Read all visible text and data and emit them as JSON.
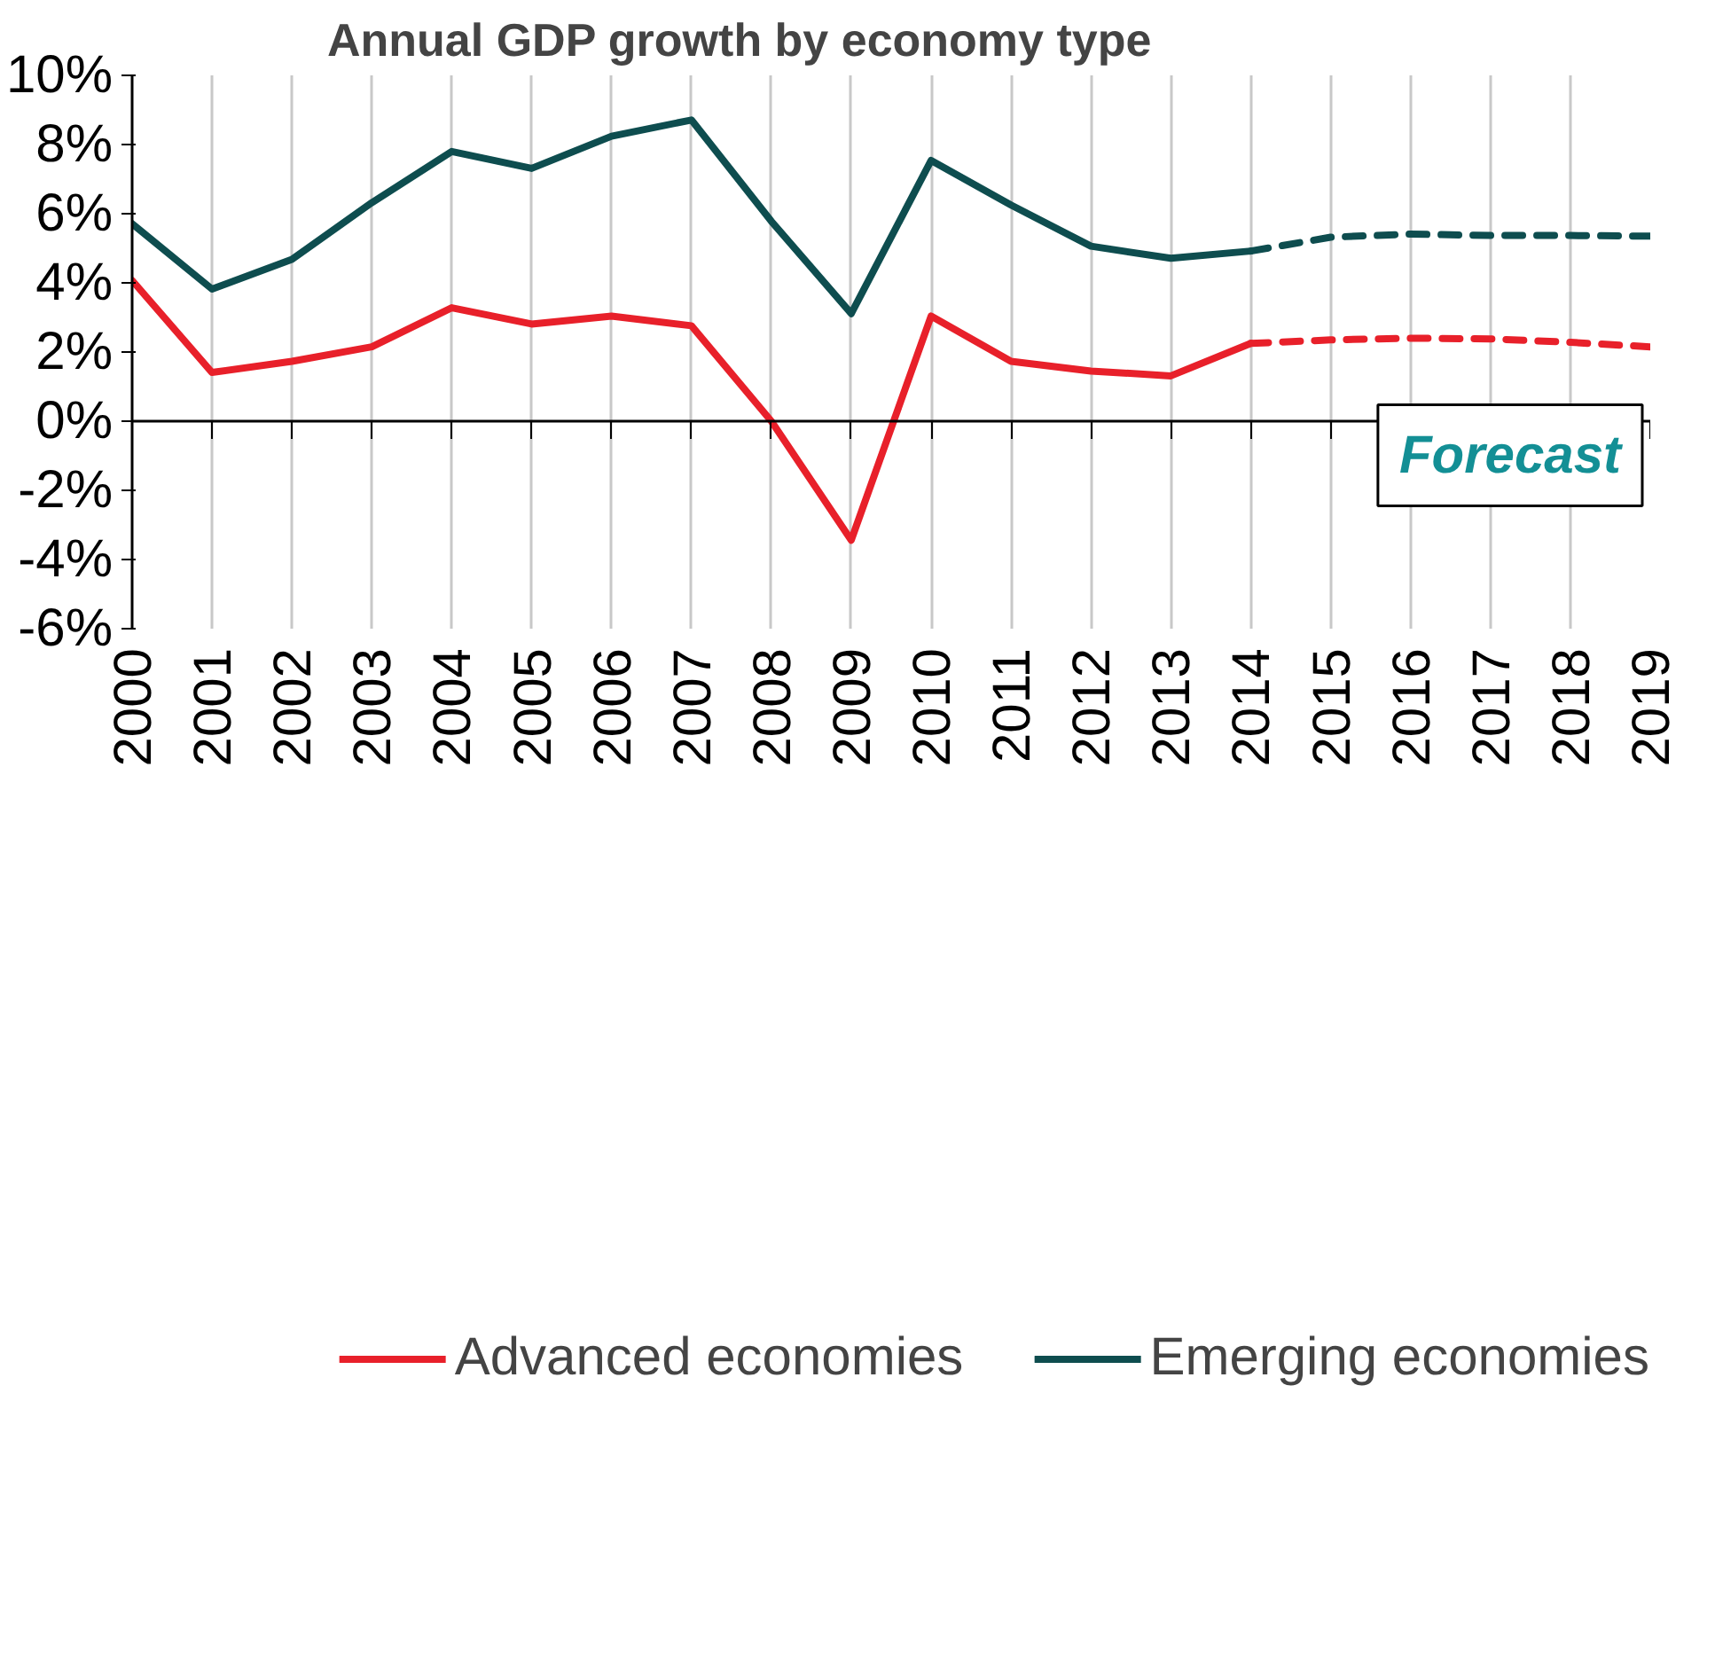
{
  "chart_data": {
    "type": "line",
    "title": "Annual GDP growth by economy type",
    "xlim": [
      2000,
      2019
    ],
    "xticks": [
      2000,
      2001,
      2002,
      2003,
      2004,
      2005,
      2006,
      2007,
      2008,
      2009,
      2010,
      2011,
      2012,
      2013,
      2014,
      2015,
      2016,
      2017,
      2018,
      2019
    ],
    "ylim": [
      -6,
      10
    ],
    "yticks": [
      {
        "value": -6,
        "label": "-6%"
      },
      {
        "value": -4,
        "label": "-4%"
      },
      {
        "value": -2,
        "label": "-2%"
      },
      {
        "value": 0,
        "label": "0%"
      },
      {
        "value": 2,
        "label": "2%"
      },
      {
        "value": 4,
        "label": "4%"
      },
      {
        "value": 6,
        "label": "6%"
      },
      {
        "value": 8,
        "label": "8%"
      },
      {
        "value": 10,
        "label": "10%"
      }
    ],
    "grid": "x",
    "legend": "bottom",
    "marker": "none",
    "annotations": [
      "Forecast"
    ],
    "series": [
      {
        "name": "Advanced economies",
        "color": "#e8202a",
        "line_style": "solid",
        "x": [
          2000,
          2001,
          2002,
          2003,
          2004,
          2005,
          2006,
          2007,
          2008,
          2009,
          2010,
          2011,
          2012,
          2013,
          2014
        ],
        "values": [
          4.07,
          1.41,
          1.73,
          2.15,
          3.28,
          2.81,
          3.04,
          2.76,
          0.0,
          -3.44,
          3.04,
          1.73,
          1.45,
          1.31,
          2.25
        ]
      },
      {
        "color": "#e8202a",
        "line_style": "dashed",
        "x": [
          2014,
          2015,
          2016,
          2017,
          2018,
          2019
        ],
        "values": [
          2.25,
          2.35,
          2.4,
          2.38,
          2.28,
          2.15
        ]
      },
      {
        "name": "Emerging economies",
        "color": "#0e4d4f",
        "line_style": "solid",
        "x": [
          2000,
          2001,
          2002,
          2003,
          2004,
          2005,
          2006,
          2007,
          2008,
          2009,
          2010,
          2011,
          2012,
          2013,
          2014
        ],
        "values": [
          5.71,
          3.82,
          4.68,
          6.32,
          7.8,
          7.31,
          8.24,
          8.71,
          5.78,
          3.11,
          7.54,
          6.25,
          5.06,
          4.71,
          4.92
        ]
      },
      {
        "color": "#0e4d4f",
        "line_style": "dashed",
        "x": [
          2014,
          2015,
          2016,
          2017,
          2018,
          2019
        ],
        "values": [
          4.92,
          5.32,
          5.41,
          5.37,
          5.37,
          5.35
        ]
      }
    ]
  }
}
